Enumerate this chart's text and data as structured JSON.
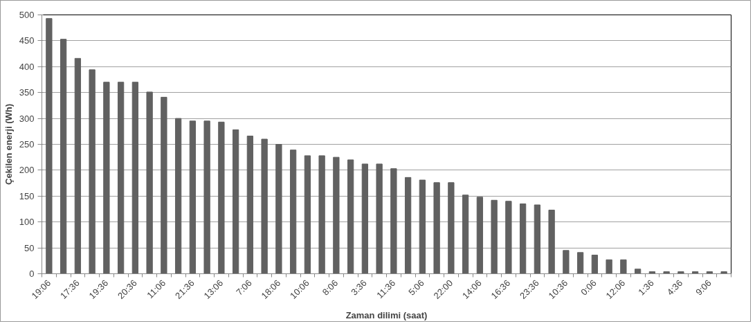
{
  "chart_data": {
    "type": "bar",
    "xlabel": "Zaman dilimi (saat)",
    "ylabel": "Çekilen enerji (Wh)",
    "categories": [
      "19:06",
      null,
      "17:36",
      null,
      "19:36",
      null,
      "20:36",
      null,
      "11:06",
      null,
      "21:36",
      null,
      "13:06",
      null,
      "7:06",
      null,
      "18:06",
      null,
      "10:06",
      null,
      "8:06",
      null,
      "3:36",
      null,
      "11:36",
      null,
      "5:06",
      null,
      "22:00",
      null,
      "14:06",
      null,
      "16:36",
      null,
      "23:36",
      null,
      "10:36",
      null,
      "0:06",
      null,
      "12:06",
      null,
      "1:36",
      null,
      "4:36",
      null,
      "9:06",
      null
    ],
    "values": [
      493,
      453,
      416,
      394,
      370,
      370,
      370,
      351,
      341,
      300,
      295,
      295,
      293,
      278,
      266,
      260,
      250,
      239,
      228,
      228,
      225,
      220,
      212,
      212,
      203,
      186,
      181,
      176,
      176,
      152,
      148,
      142,
      140,
      135,
      133,
      123,
      45,
      41,
      36,
      27,
      27,
      9,
      4,
      4,
      4,
      4,
      4,
      4
    ],
    "color": "#616161",
    "ylim": [
      0,
      500
    ],
    "yticks": [
      0,
      50,
      100,
      150,
      200,
      250,
      300,
      350,
      400,
      450,
      500
    ],
    "grid": "y"
  }
}
